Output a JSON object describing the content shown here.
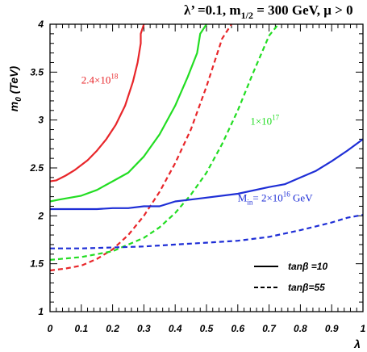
{
  "chart_data": {
    "type": "line",
    "title": {
      "prefix": "λ’ =0.1, m",
      "sub": "1/2",
      "suffix": " = 300 GeV,  μ > 0"
    },
    "xlabel": "λ",
    "ylabel": {
      "main": "m",
      "sub": "0",
      "suffix": " (TeV)"
    },
    "xlim": [
      0,
      1
    ],
    "ylim": [
      1,
      4
    ],
    "xticks": [
      "0",
      "0.1",
      "0.2",
      "0.3",
      "0.4",
      "0.5",
      "0.6",
      "0.7",
      "0.8",
      "0.9",
      "1"
    ],
    "yticks": [
      "1",
      "1.5",
      "2",
      "2.5",
      "3",
      "3.5",
      "4"
    ],
    "colors": {
      "red": "#e8262a",
      "green": "#22dd22",
      "blue": "#1e2ed6"
    },
    "series": [
      {
        "color": "red",
        "style": "solid",
        "x": [
          0,
          0.02,
          0.05,
          0.08,
          0.12,
          0.15,
          0.18,
          0.21,
          0.24,
          0.265,
          0.28,
          0.29,
          0.29,
          0.3
        ],
        "y": [
          2.36,
          2.37,
          2.42,
          2.48,
          2.58,
          2.68,
          2.8,
          2.95,
          3.15,
          3.4,
          3.6,
          3.8,
          3.9,
          4.0
        ]
      },
      {
        "color": "green",
        "style": "solid",
        "x": [
          0,
          0.03,
          0.1,
          0.15,
          0.2,
          0.25,
          0.3,
          0.35,
          0.4,
          0.44,
          0.47,
          0.48,
          0.5
        ],
        "y": [
          2.15,
          2.17,
          2.21,
          2.27,
          2.36,
          2.45,
          2.62,
          2.85,
          3.15,
          3.45,
          3.7,
          3.9,
          4.0
        ]
      },
      {
        "color": "red",
        "style": "dashed",
        "x": [
          0,
          0.05,
          0.1,
          0.15,
          0.2,
          0.25,
          0.3,
          0.35,
          0.4,
          0.45,
          0.5,
          0.55,
          0.58
        ],
        "y": [
          1.43,
          1.45,
          1.48,
          1.55,
          1.65,
          1.8,
          2.0,
          2.25,
          2.55,
          2.9,
          3.35,
          3.85,
          4.0
        ]
      },
      {
        "color": "green",
        "style": "dashed",
        "x": [
          0,
          0.1,
          0.2,
          0.3,
          0.35,
          0.4,
          0.45,
          0.5,
          0.55,
          0.6,
          0.65,
          0.7,
          0.73
        ],
        "y": [
          1.54,
          1.57,
          1.63,
          1.77,
          1.88,
          2.03,
          2.22,
          2.45,
          2.75,
          3.1,
          3.5,
          3.88,
          4.0
        ]
      },
      {
        "color": "blue",
        "style": "solid",
        "x": [
          0,
          0.1,
          0.15,
          0.2,
          0.25,
          0.3,
          0.35,
          0.4,
          0.45,
          0.5,
          0.6,
          0.7,
          0.75,
          0.8,
          0.85,
          0.9,
          0.95,
          1.0
        ],
        "y": [
          2.07,
          2.07,
          2.07,
          2.08,
          2.08,
          2.1,
          2.1,
          2.15,
          2.17,
          2.19,
          2.23,
          2.3,
          2.33,
          2.4,
          2.47,
          2.57,
          2.68,
          2.8
        ]
      },
      {
        "color": "blue",
        "style": "dashed",
        "x": [
          0,
          0.1,
          0.2,
          0.3,
          0.4,
          0.5,
          0.6,
          0.7,
          0.8,
          0.9,
          0.95,
          1.0
        ],
        "y": [
          1.66,
          1.66,
          1.67,
          1.68,
          1.7,
          1.72,
          1.74,
          1.78,
          1.85,
          1.93,
          1.98,
          2.01
        ]
      }
    ],
    "annotations": [
      {
        "color": "red",
        "base": "2.4×10",
        "exp": "18",
        "x": 0.1,
        "y": 3.38
      },
      {
        "color": "green",
        "base": "1×10",
        "exp": "17",
        "x": 0.64,
        "y": 2.95
      },
      {
        "color": "blue",
        "prefix": "M",
        "sub": "in",
        "mid": "= 2×10",
        "exp": "16",
        "suffix": " GeV",
        "x": 0.6,
        "y": 2.15
      }
    ],
    "legend": {
      "position": "bottom-right",
      "entries": [
        {
          "style": "solid",
          "label": "tanβ =10"
        },
        {
          "style": "dashed",
          "label": "tanβ=55"
        }
      ]
    }
  }
}
